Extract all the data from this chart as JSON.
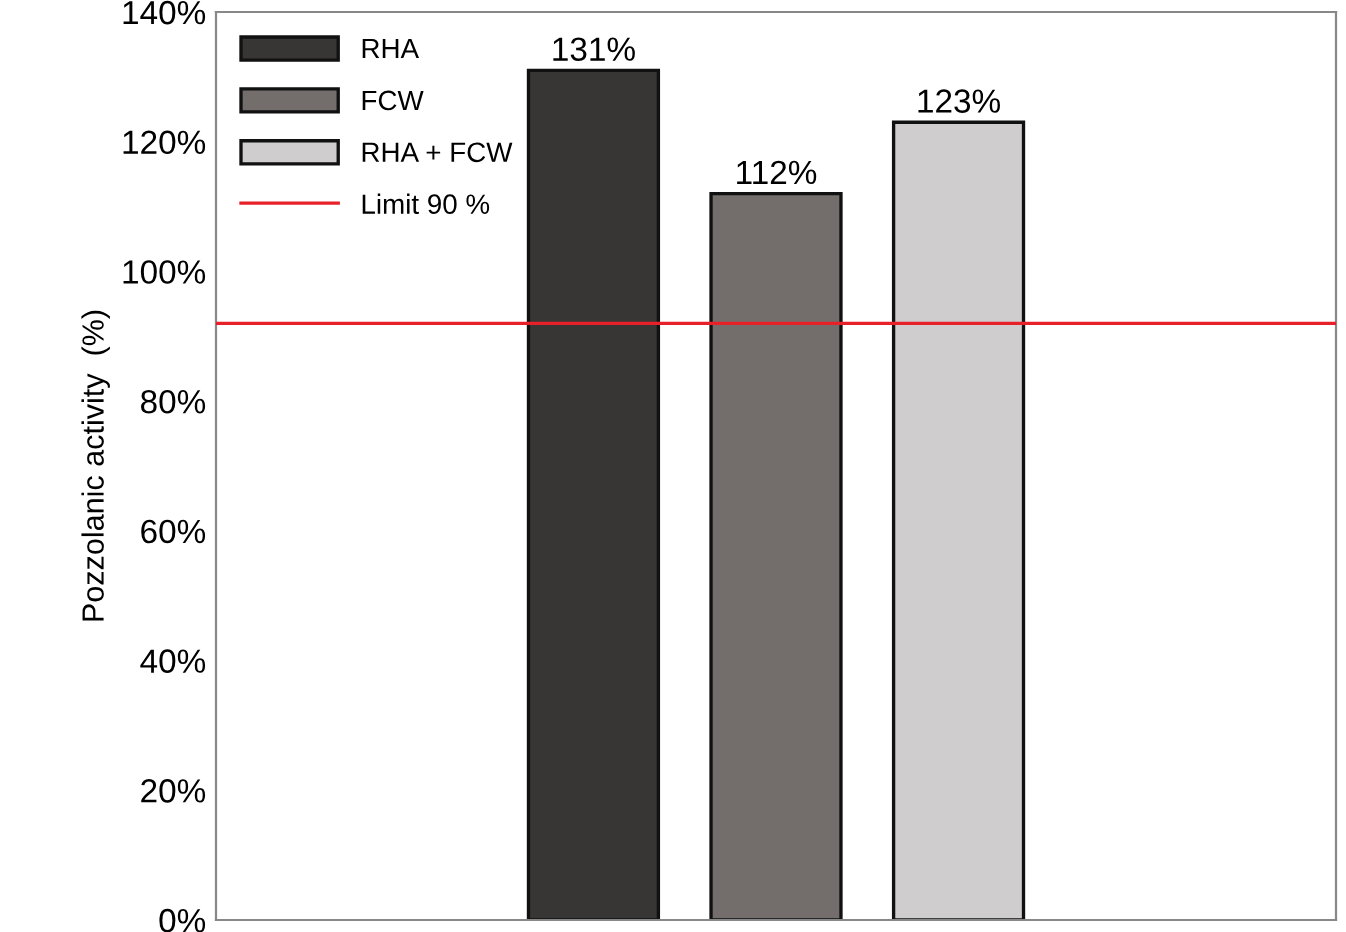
{
  "chart_data": {
    "type": "bar",
    "ylabel": "Pozzolanic activity  (%)",
    "categories": [
      null
    ],
    "series": [
      {
        "name": "RHA",
        "color": "#383634",
        "values": [
          131
        ],
        "value_labels": [
          "131%"
        ]
      },
      {
        "name": "FCW",
        "color": "#736e6c",
        "values": [
          112
        ],
        "value_labels": [
          "112%"
        ]
      },
      {
        "name": "RHA + FCW",
        "color": "#cfcdce",
        "values": [
          123
        ],
        "value_labels": [
          "123%"
        ]
      }
    ],
    "ylim": [
      0,
      140
    ],
    "yticks": [
      {
        "value": 0,
        "label": "0%"
      },
      {
        "value": 20,
        "label": "20%"
      },
      {
        "value": 40,
        "label": "40%"
      },
      {
        "value": 60,
        "label": "60%"
      },
      {
        "value": 80,
        "label": "80%"
      },
      {
        "value": 100,
        "label": "100%"
      },
      {
        "value": 120,
        "label": "120%"
      },
      {
        "value": 140,
        "label": "140%"
      }
    ],
    "ref_lines": [
      {
        "axis": "y",
        "value": 92,
        "label": "Limit 90 %",
        "color": "#e8202a"
      }
    ],
    "legend": "top left",
    "grid": false
  }
}
